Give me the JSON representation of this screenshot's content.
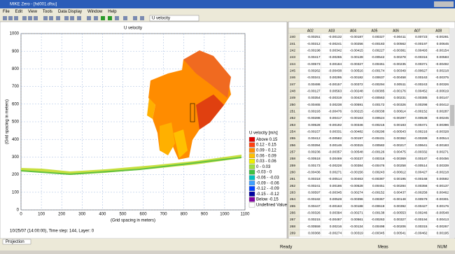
{
  "window": {
    "title": "MIKE Zero - [hd001.dfsu]",
    "menu": [
      "File",
      "Edit",
      "View",
      "Tools",
      "Data Display",
      "Window",
      "Help"
    ],
    "toolbar_dropdown": "U velocity"
  },
  "plot": {
    "title": "U velocity",
    "x_label": "(Grid spacing in meters)",
    "y_label": "(Grid spacing in meters)",
    "x_ticks": [
      0,
      100,
      200,
      300,
      400,
      500,
      600,
      700,
      800,
      900,
      1000,
      1100
    ],
    "y_ticks": [
      0,
      100,
      200,
      300,
      400,
      500,
      600,
      700,
      800,
      900,
      1000
    ],
    "footer": "10/25/07 (14:00:00), Time step: 144, Layer: 0",
    "legend": {
      "title": "U velocity [m/s]",
      "items": [
        {
          "label": "Above 0.15",
          "color": "#e00000"
        },
        {
          "label": "0.12 - 0.15",
          "color": "#ff4010"
        },
        {
          "label": "0.09 - 0.12",
          "color": "#ff8c00"
        },
        {
          "label": "0.06 - 0.09",
          "color": "#ffc000"
        },
        {
          "label": "0.03 - 0.06",
          "color": "#f0f000"
        },
        {
          "label": "0 - 0.03",
          "color": "#a0e040"
        },
        {
          "label": "-0.03 - 0",
          "color": "#40c040"
        },
        {
          "label": "-0.06 - -0.03",
          "color": "#00c0c0"
        },
        {
          "label": "-0.09 - -0.06",
          "color": "#40a0ff"
        },
        {
          "label": "-0.12 - -0.09",
          "color": "#0040ff"
        },
        {
          "label": "-0.15 - -0.12",
          "color": "#0000a0"
        },
        {
          "label": "Below -0.15",
          "color": "#8000a0"
        },
        {
          "label": "Undefined Value",
          "color": "#ffffff"
        }
      ]
    }
  },
  "table": {
    "columns": [
      "A02",
      "A03",
      "A04",
      "A05",
      "A06",
      "A07",
      "A08"
    ],
    "rows": [
      {
        "label": "240",
        "cells": [
          "-0.00251",
          "-0.00132",
          "-0.00187",
          "0.00327",
          "-0.00411",
          "0.00723",
          "-0.00281"
        ]
      },
      {
        "label": "241",
        "cells": [
          "-0.00312",
          "-0.00241",
          "0.00256",
          "-0.00183",
          "0.00562",
          "-0.00197",
          "0.00645"
        ]
      },
      {
        "label": "242",
        "cells": [
          "-0.00198",
          "0.00342",
          "-0.00415",
          "0.00227",
          "-0.00381",
          "0.00493",
          "-0.00154"
        ]
      },
      {
        "label": "243",
        "cells": [
          "0.00417",
          "-0.00265",
          "0.00139",
          "-0.00542",
          "0.00278",
          "-0.00316",
          "0.00583"
        ]
      },
      {
        "label": "244",
        "cells": [
          "-0.00573",
          "0.00184",
          "-0.00327",
          "0.00461",
          "-0.00235",
          "0.00371",
          "-0.00492"
        ]
      },
      {
        "label": "245",
        "cells": [
          "0.00262",
          "-0.00438",
          "0.00516",
          "-0.00174",
          "0.00349",
          "-0.00627",
          "0.00218"
        ]
      },
      {
        "label": "246",
        "cells": [
          "-0.00341",
          "0.00295",
          "-0.00182",
          "0.00637",
          "-0.00458",
          "0.00163",
          "-0.00375"
        ]
      },
      {
        "label": "247",
        "cells": [
          "0.00486",
          "-0.00157",
          "0.00372",
          "-0.00294",
          "0.00511",
          "-0.00243",
          "0.00326"
        ]
      },
      {
        "label": "248",
        "cells": [
          "-0.00127",
          "0.00563",
          "-0.00248",
          "0.00385",
          "-0.00176",
          "0.00452",
          "-0.00619"
        ]
      },
      {
        "label": "249",
        "cells": [
          "0.00354",
          "-0.00319",
          "0.00427",
          "-0.00563",
          "0.00231",
          "-0.00385",
          "0.00147"
        ]
      },
      {
        "label": "250",
        "cells": [
          "-0.00465",
          "0.00238",
          "-0.00591",
          "0.00172",
          "-0.00326",
          "0.00298",
          "-0.00412"
        ]
      },
      {
        "label": "251",
        "cells": [
          "0.00193",
          "-0.00476",
          "0.00215",
          "-0.00338",
          "0.00614",
          "-0.00152",
          "0.00287"
        ]
      },
      {
        "label": "252",
        "cells": [
          "-0.00286",
          "0.00417",
          "-0.00163",
          "0.00524",
          "-0.00297",
          "0.00538",
          "-0.00245"
        ]
      },
      {
        "label": "253",
        "cells": [
          "0.00528",
          "-0.00192",
          "0.00346",
          "-0.00215",
          "0.00183",
          "-0.00471",
          "0.00396"
        ]
      },
      {
        "label": "254",
        "cells": [
          "-0.00157",
          "0.00331",
          "-0.00482",
          "0.00296",
          "-0.00543",
          "0.00216",
          "-0.00328"
        ]
      },
      {
        "label": "255",
        "cells": [
          "0.00412",
          "-0.00582",
          "0.00197",
          "-0.00431",
          "0.00362",
          "-0.00289",
          "0.00514"
        ]
      },
      {
        "label": "256",
        "cells": [
          "-0.00394",
          "0.00146",
          "-0.00315",
          "0.00582",
          "-0.00217",
          "0.00641",
          "-0.00183"
        ]
      },
      {
        "label": "257",
        "cells": [
          "0.00236",
          "-0.00357",
          "0.00548",
          "-0.00126",
          "0.00475",
          "-0.00332",
          "0.00271"
        ]
      },
      {
        "label": "258",
        "cells": [
          "-0.00518",
          "0.00469",
          "-0.00237",
          "0.00318",
          "-0.00369",
          "0.00187",
          "-0.00456"
        ]
      },
      {
        "label": "259",
        "cells": [
          "0.00173",
          "-0.00228",
          "0.00384",
          "-0.00476",
          "0.00258",
          "-0.00514",
          "0.00339"
        ]
      },
      {
        "label": "260",
        "cells": [
          "-0.00436",
          "0.00271",
          "-0.00156",
          "0.00243",
          "-0.00612",
          "0.00427",
          "-0.00218"
        ]
      },
      {
        "label": "261",
        "cells": [
          "0.00318",
          "-0.00514",
          "0.00463",
          "-0.00387",
          "0.00195",
          "-0.00168",
          "0.00592"
        ]
      },
      {
        "label": "262",
        "cells": [
          "-0.00241",
          "0.00186",
          "-0.00528",
          "0.00451",
          "-0.00284",
          "0.00356",
          "-0.00137"
        ]
      },
      {
        "label": "263",
        "cells": [
          "0.00597",
          "-0.00345",
          "0.00274",
          "-0.00152",
          "0.00437",
          "-0.00258",
          "0.00462"
        ]
      },
      {
        "label": "264",
        "cells": [
          "-0.00182",
          "0.00528",
          "-0.00396",
          "0.00367",
          "-0.00148",
          "0.00579",
          "-0.00301"
        ]
      },
      {
        "label": "265",
        "cells": [
          "0.00447",
          "-0.00163",
          "0.00188",
          "-0.00619",
          "0.00392",
          "-0.00427",
          "0.00176"
        ]
      },
      {
        "label": "266",
        "cells": [
          "-0.00326",
          "0.00394",
          "-0.00271",
          "0.00138",
          "-0.00553",
          "0.00246",
          "-0.00548"
        ]
      },
      {
        "label": "267",
        "cells": [
          "0.00215",
          "-0.00487",
          "0.00561",
          "-0.00263",
          "0.00327",
          "-0.00194",
          "0.00413"
        ]
      },
      {
        "label": "268",
        "cells": [
          "-0.00559",
          "0.00216",
          "-0.00134",
          "0.00498",
          "-0.00206",
          "0.00315",
          "-0.00267"
        ]
      },
      {
        "label": "269",
        "cells": [
          "0.00368",
          "-0.00274",
          "0.00319",
          "-0.00345",
          "0.00541",
          "-0.00462",
          "0.00195"
        ]
      }
    ]
  },
  "status": {
    "tab": "Projection",
    "left": "Ready",
    "right": "Meas",
    "far_right": "NUM"
  }
}
